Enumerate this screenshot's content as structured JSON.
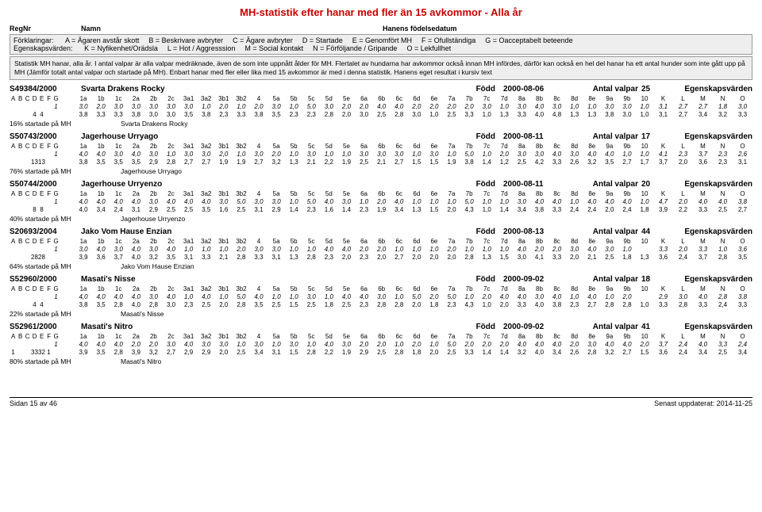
{
  "title": "MH-statistik efter hanar med fler än 15 avkommor - Alla år",
  "header": {
    "regnr": "RegNr",
    "namn": "Namn",
    "hfd": "Hanens födelsedatum"
  },
  "legend1": [
    {
      "k": "Förklaringar:",
      "v": ""
    },
    {
      "k": "A =",
      "v": "Ägaren avstår skott"
    },
    {
      "k": "B =",
      "v": "Beskrivare avbryter"
    },
    {
      "k": "C =",
      "v": "Ägare avbryter"
    },
    {
      "k": "D =",
      "v": "Startade"
    },
    {
      "k": "E =",
      "v": "Genomfört MH"
    },
    {
      "k": "F =",
      "v": "Ofullständiga"
    },
    {
      "k": "G =",
      "v": "Oacceptabelt beteende"
    }
  ],
  "legend2": [
    {
      "k": "Egenskapsvärden:",
      "v": ""
    },
    {
      "k": "K =",
      "v": "Nyfikenhet/Orädsla"
    },
    {
      "k": "L =",
      "v": "Hot / Aggresssion"
    },
    {
      "k": "M =",
      "v": "Social kontakt"
    },
    {
      "k": "N =",
      "v": "Förföljande / Gripande"
    },
    {
      "k": "O =",
      "v": "Lekfullhet"
    }
  ],
  "note": "Statistik MH hanar, alla år. I antal valpar är alla valpar medräknade, även de som inte uppnått ålder för MH. Flertalet av hundarna har avkommor också innan MH infördes, därför kan också en hel del hanar ha ett antal hunder som inte gått upp på MH (Jämför totalt antal valpar och startade på MH). Enbart hanar med fler eller lika med 15 avkommor är med i denna statistik. Hanens eget resultat i kursiv text",
  "cols_lead": [
    "A",
    "B",
    "C",
    "D",
    "E",
    "F",
    "G"
  ],
  "cols_nums": [
    "1a",
    "1b",
    "1c",
    "2a",
    "2b",
    "2c",
    "3a1",
    "3a2",
    "3b1",
    "3b2",
    "4",
    "5a",
    "5b",
    "5c",
    "5d",
    "5e",
    "6a",
    "6b",
    "6c",
    "6d",
    "6e",
    "7a",
    "7b",
    "7c",
    "7d",
    "8a",
    "8b",
    "8c",
    "8d",
    "8e",
    "9a",
    "9b",
    "10"
  ],
  "cols_klmno": [
    "K",
    "L",
    "M",
    "N",
    "O"
  ],
  "fodd_lbl": "Född",
  "av_lbl": "Antal valpar",
  "eg_lbl": "Egenskapsvärden",
  "dogs": [
    {
      "reg": "S49384/2000",
      "name": "Svarta Drakens Rocky",
      "date": "2000-08-06",
      "av": "25",
      "r1_lead": [
        "",
        "",
        "",
        "",
        "",
        "",
        "1"
      ],
      "r1": [
        "3,0",
        "2,0",
        "3,0",
        "3,0",
        "3,0",
        "3,0",
        "3,0",
        "1,0",
        "2,0",
        "1,0",
        "2,0",
        "3,0",
        "1,0",
        "5,0",
        "3,0",
        "2,0",
        "2,0",
        "4,0",
        "4,0",
        "2,0",
        "2,0",
        "2,0",
        "2,0",
        "3,0",
        "1,0",
        "3,0",
        "4,0",
        "3,0",
        "1,0",
        "1,0",
        "3,0",
        "3,0",
        "1,0"
      ],
      "r1k": [
        "3,1",
        "2,7",
        "2,7",
        "1,8",
        "3,0"
      ],
      "r2_lead": [
        "",
        "",
        "",
        "4",
        "4",
        "",
        ""
      ],
      "r2": [
        "3,8",
        "3,3",
        "3,3",
        "3,8",
        "3,0",
        "3,0",
        "3,5",
        "3,8",
        "2,3",
        "3,3",
        "3,8",
        "3,5",
        "2,3",
        "2,3",
        "2,8",
        "2,0",
        "3,0",
        "2,5",
        "2,8",
        "3,0",
        "1,0",
        "2,5",
        "3,3",
        "1,0",
        "1,3",
        "3,3",
        "4,0",
        "4,8",
        "1,3",
        "1,3",
        "3,8",
        "3,0",
        "1,0"
      ],
      "r2k": [
        "3,1",
        "2,7",
        "3,4",
        "3,2",
        "3,3"
      ],
      "pct": "16% startade på MH",
      "name2": "Svarta Drakens Rocky"
    },
    {
      "reg": "S50743/2000",
      "name": "Jagerhouse Urryago",
      "date": "2000-08-11",
      "av": "17",
      "r1_lead": [
        "",
        "",
        "",
        "",
        "",
        "",
        "1"
      ],
      "r1": [
        "4,0",
        "4,0",
        "3,0",
        "4,0",
        "3,0",
        "1,0",
        "3,0",
        "3,0",
        "2,0",
        "1,0",
        "3,0",
        "2,0",
        "1,0",
        "3,0",
        "1,0",
        "1,0",
        "3,0",
        "3,0",
        "3,0",
        "1,0",
        "3,0",
        "1,0",
        "5,0",
        "1,0",
        "2,0",
        "3,0",
        "3,0",
        "4,0",
        "3,0",
        "4,0",
        "4,0",
        "1,0",
        "1,0"
      ],
      "r1k": [
        "4,1",
        "2,3",
        "3,7",
        "2,3",
        "2,6"
      ],
      "r2_lead": [
        "",
        "",
        "",
        "13",
        "13",
        "",
        ""
      ],
      "r2": [
        "3,8",
        "3,5",
        "3,5",
        "3,5",
        "2,9",
        "2,8",
        "2,7",
        "2,7",
        "1,9",
        "1,9",
        "2,7",
        "3,2",
        "1,3",
        "2,1",
        "2,2",
        "1,9",
        "2,5",
        "2,1",
        "2,7",
        "1,5",
        "1,5",
        "1,9",
        "3,8",
        "1,4",
        "1,2",
        "2,5",
        "4,2",
        "3,3",
        "2,6",
        "3,2",
        "3,5",
        "2,7",
        "1,7"
      ],
      "r2k": [
        "3,7",
        "2,0",
        "3,6",
        "2,3",
        "3,1"
      ],
      "pct": "76% startade på MH",
      "name2": "Jagerhouse Urryago"
    },
    {
      "reg": "S50744/2000",
      "name": "Jagerhouse Urryenzo",
      "date": "2000-08-11",
      "av": "20",
      "r1_lead": [
        "",
        "",
        "",
        "",
        "",
        "",
        "1"
      ],
      "r1": [
        "4,0",
        "4,0",
        "4,0",
        "4,0",
        "3,0",
        "4,0",
        "4,0",
        "4,0",
        "3,0",
        "5,0",
        "3,0",
        "3,0",
        "1,0",
        "5,0",
        "4,0",
        "3,0",
        "1,0",
        "2,0",
        "4,0",
        "1,0",
        "1,0",
        "1,0",
        "5,0",
        "1,0",
        "1,0",
        "3,0",
        "4,0",
        "4,0",
        "1,0",
        "4,0",
        "4,0",
        "4,0",
        "1,0"
      ],
      "r1k": [
        "4,7",
        "2,0",
        "4,0",
        "4,0",
        "3,8"
      ],
      "r2_lead": [
        "",
        "",
        "",
        "8",
        "8",
        "",
        ""
      ],
      "r2": [
        "4,0",
        "3,4",
        "2,4",
        "3,1",
        "2,9",
        "2,5",
        "2,5",
        "3,5",
        "1,6",
        "2,5",
        "3,1",
        "2,9",
        "1,4",
        "2,3",
        "1,6",
        "1,4",
        "2,3",
        "1,9",
        "3,4",
        "1,3",
        "1,5",
        "2,0",
        "4,3",
        "1,0",
        "1,4",
        "3,4",
        "3,8",
        "3,3",
        "2,4",
        "2,4",
        "2,0",
        "2,4",
        "1,8"
      ],
      "r2k": [
        "3,9",
        "2,2",
        "3,3",
        "2,5",
        "2,7"
      ],
      "pct": "40% startade på MH",
      "name2": "Jagerhouse Urryenzo"
    },
    {
      "reg": "S20693/2004",
      "name": "Jako Vom Hause Enzian",
      "date": "2000-08-13",
      "av": "44",
      "r1_lead": [
        "",
        "",
        "",
        "",
        "",
        "",
        "1"
      ],
      "r1": [
        "3,0",
        "4,0",
        "3,0",
        "4,0",
        "3,0",
        "4,0",
        "1,0",
        "1,0",
        "1,0",
        "2,0",
        "3,0",
        "3,0",
        "1,0",
        "1,0",
        "4,0",
        "4,0",
        "2,0",
        "2,0",
        "1,0",
        "1,0",
        "1,0",
        "2,0",
        "1,0",
        "1,0",
        "1,0",
        "4,0",
        "2,0",
        "2,0",
        "3,0",
        "4,0",
        "3,0",
        "1,0",
        " "
      ],
      "r1k": [
        "3,3",
        "2,0",
        "3,3",
        "1,0",
        "3,6"
      ],
      "r2_lead": [
        "",
        "",
        "",
        "28",
        "28",
        "",
        ""
      ],
      "r2": [
        "3,9",
        "3,6",
        "3,7",
        "4,0",
        "3,2",
        "3,5",
        "3,1",
        "3,3",
        "2,1",
        "2,8",
        "3,3",
        "3,1",
        "1,3",
        "2,8",
        "2,3",
        "2,0",
        "2,3",
        "2,0",
        "2,7",
        "2,0",
        "2,0",
        "2,0",
        "2,8",
        "1,3",
        "1,5",
        "3,0",
        "4,1",
        "3,3",
        "2,0",
        "2,1",
        "2,5",
        "1,8",
        "1,3"
      ],
      "r2k": [
        "3,6",
        "2,4",
        "3,7",
        "2,8",
        "3,5"
      ],
      "pct": "64% startade på MH",
      "name2": "Jako Vom Hause Enzian"
    },
    {
      "reg": "S52960/2000",
      "name": "Masati's Nisse",
      "date": "2000-09-02",
      "av": "18",
      "r1_lead": [
        "",
        "",
        "",
        "",
        "",
        "",
        "1"
      ],
      "r1": [
        "4,0",
        "4,0",
        "4,0",
        "4,0",
        "3,0",
        "4,0",
        "1,0",
        "4,0",
        "1,0",
        "5,0",
        "4,0",
        "1,0",
        "1,0",
        "3,0",
        "1,0",
        "4,0",
        "4,0",
        "3,0",
        "1,0",
        "5,0",
        "2,0",
        "5,0",
        "1,0",
        "2,0",
        "4,0",
        "4,0",
        "3,0",
        "4,0",
        "1,0",
        "4,0",
        "1,0",
        "2,0",
        " "
      ],
      "r1k": [
        "2,9",
        "3,0",
        "4,0",
        "2,8",
        "3,8"
      ],
      "r2_lead": [
        "",
        "",
        "",
        "4",
        "4",
        "",
        ""
      ],
      "r2": [
        "3,8",
        "3,5",
        "2,8",
        "4,0",
        "2,8",
        "3,0",
        "2,3",
        "2,5",
        "2,0",
        "2,8",
        "3,5",
        "2,5",
        "1,5",
        "2,5",
        "1,8",
        "2,5",
        "2,3",
        "2,8",
        "2,8",
        "2,0",
        "1,8",
        "2,3",
        "4,3",
        "1,0",
        "2,0",
        "3,3",
        "4,0",
        "3,8",
        "2,3",
        "2,7",
        "2,8",
        "2,8",
        "1,0"
      ],
      "r2k": [
        "3,3",
        "2,8",
        "3,3",
        "2,4",
        "3,3"
      ],
      "pct": "22% startade på MH",
      "name2": "Masati's Nisse"
    },
    {
      "reg": "S52961/2000",
      "name": "Masati's Nitro",
      "date": "2000-09-02",
      "av": "41",
      "r1_lead": [
        "",
        "",
        "",
        "",
        "",
        "",
        "1"
      ],
      "r1": [
        "4,0",
        "4,0",
        "4,0",
        "2,0",
        "2,0",
        "3,0",
        "4,0",
        "3,0",
        "3,0",
        "1,0",
        "3,0",
        "1,0",
        "3,0",
        "1,0",
        "4,0",
        "3,0",
        "2,0",
        "2,0",
        "1,0",
        "2,0",
        "1,0",
        "5,0",
        "2,0",
        "2,0",
        "2,0",
        "4,0",
        "4,0",
        "4,0",
        "2,0",
        "3,0",
        "4,0",
        "4,0",
        "2,0"
      ],
      "r1k": [
        "3,7",
        "2,4",
        "4,0",
        "3,3",
        "2,4"
      ],
      "r2_lead": [
        "1",
        "",
        "",
        "33",
        "32",
        "1",
        ""
      ],
      "r2": [
        "3,9",
        "3,5",
        "2,8",
        "3,9",
        "3,2",
        "2,7",
        "2,9",
        "2,9",
        "2,0",
        "2,5",
        "3,4",
        "3,1",
        "1,5",
        "2,8",
        "2,2",
        "1,9",
        "2,9",
        "2,5",
        "2,8",
        "1,8",
        "2,0",
        "2,5",
        "3,3",
        "1,4",
        "1,4",
        "3,2",
        "4,0",
        "3,4",
        "2,6",
        "2,8",
        "3,2",
        "2,7",
        "1,5"
      ],
      "r2k": [
        "3,6",
        "2,4",
        "3,4",
        "2,5",
        "3,4"
      ],
      "pct": "80% startade på MH",
      "name2": "Masati's Nitro"
    }
  ],
  "footer": {
    "left": "Sidan 15 av 46",
    "right": "Senast uppdaterat: 2014-11-25"
  }
}
